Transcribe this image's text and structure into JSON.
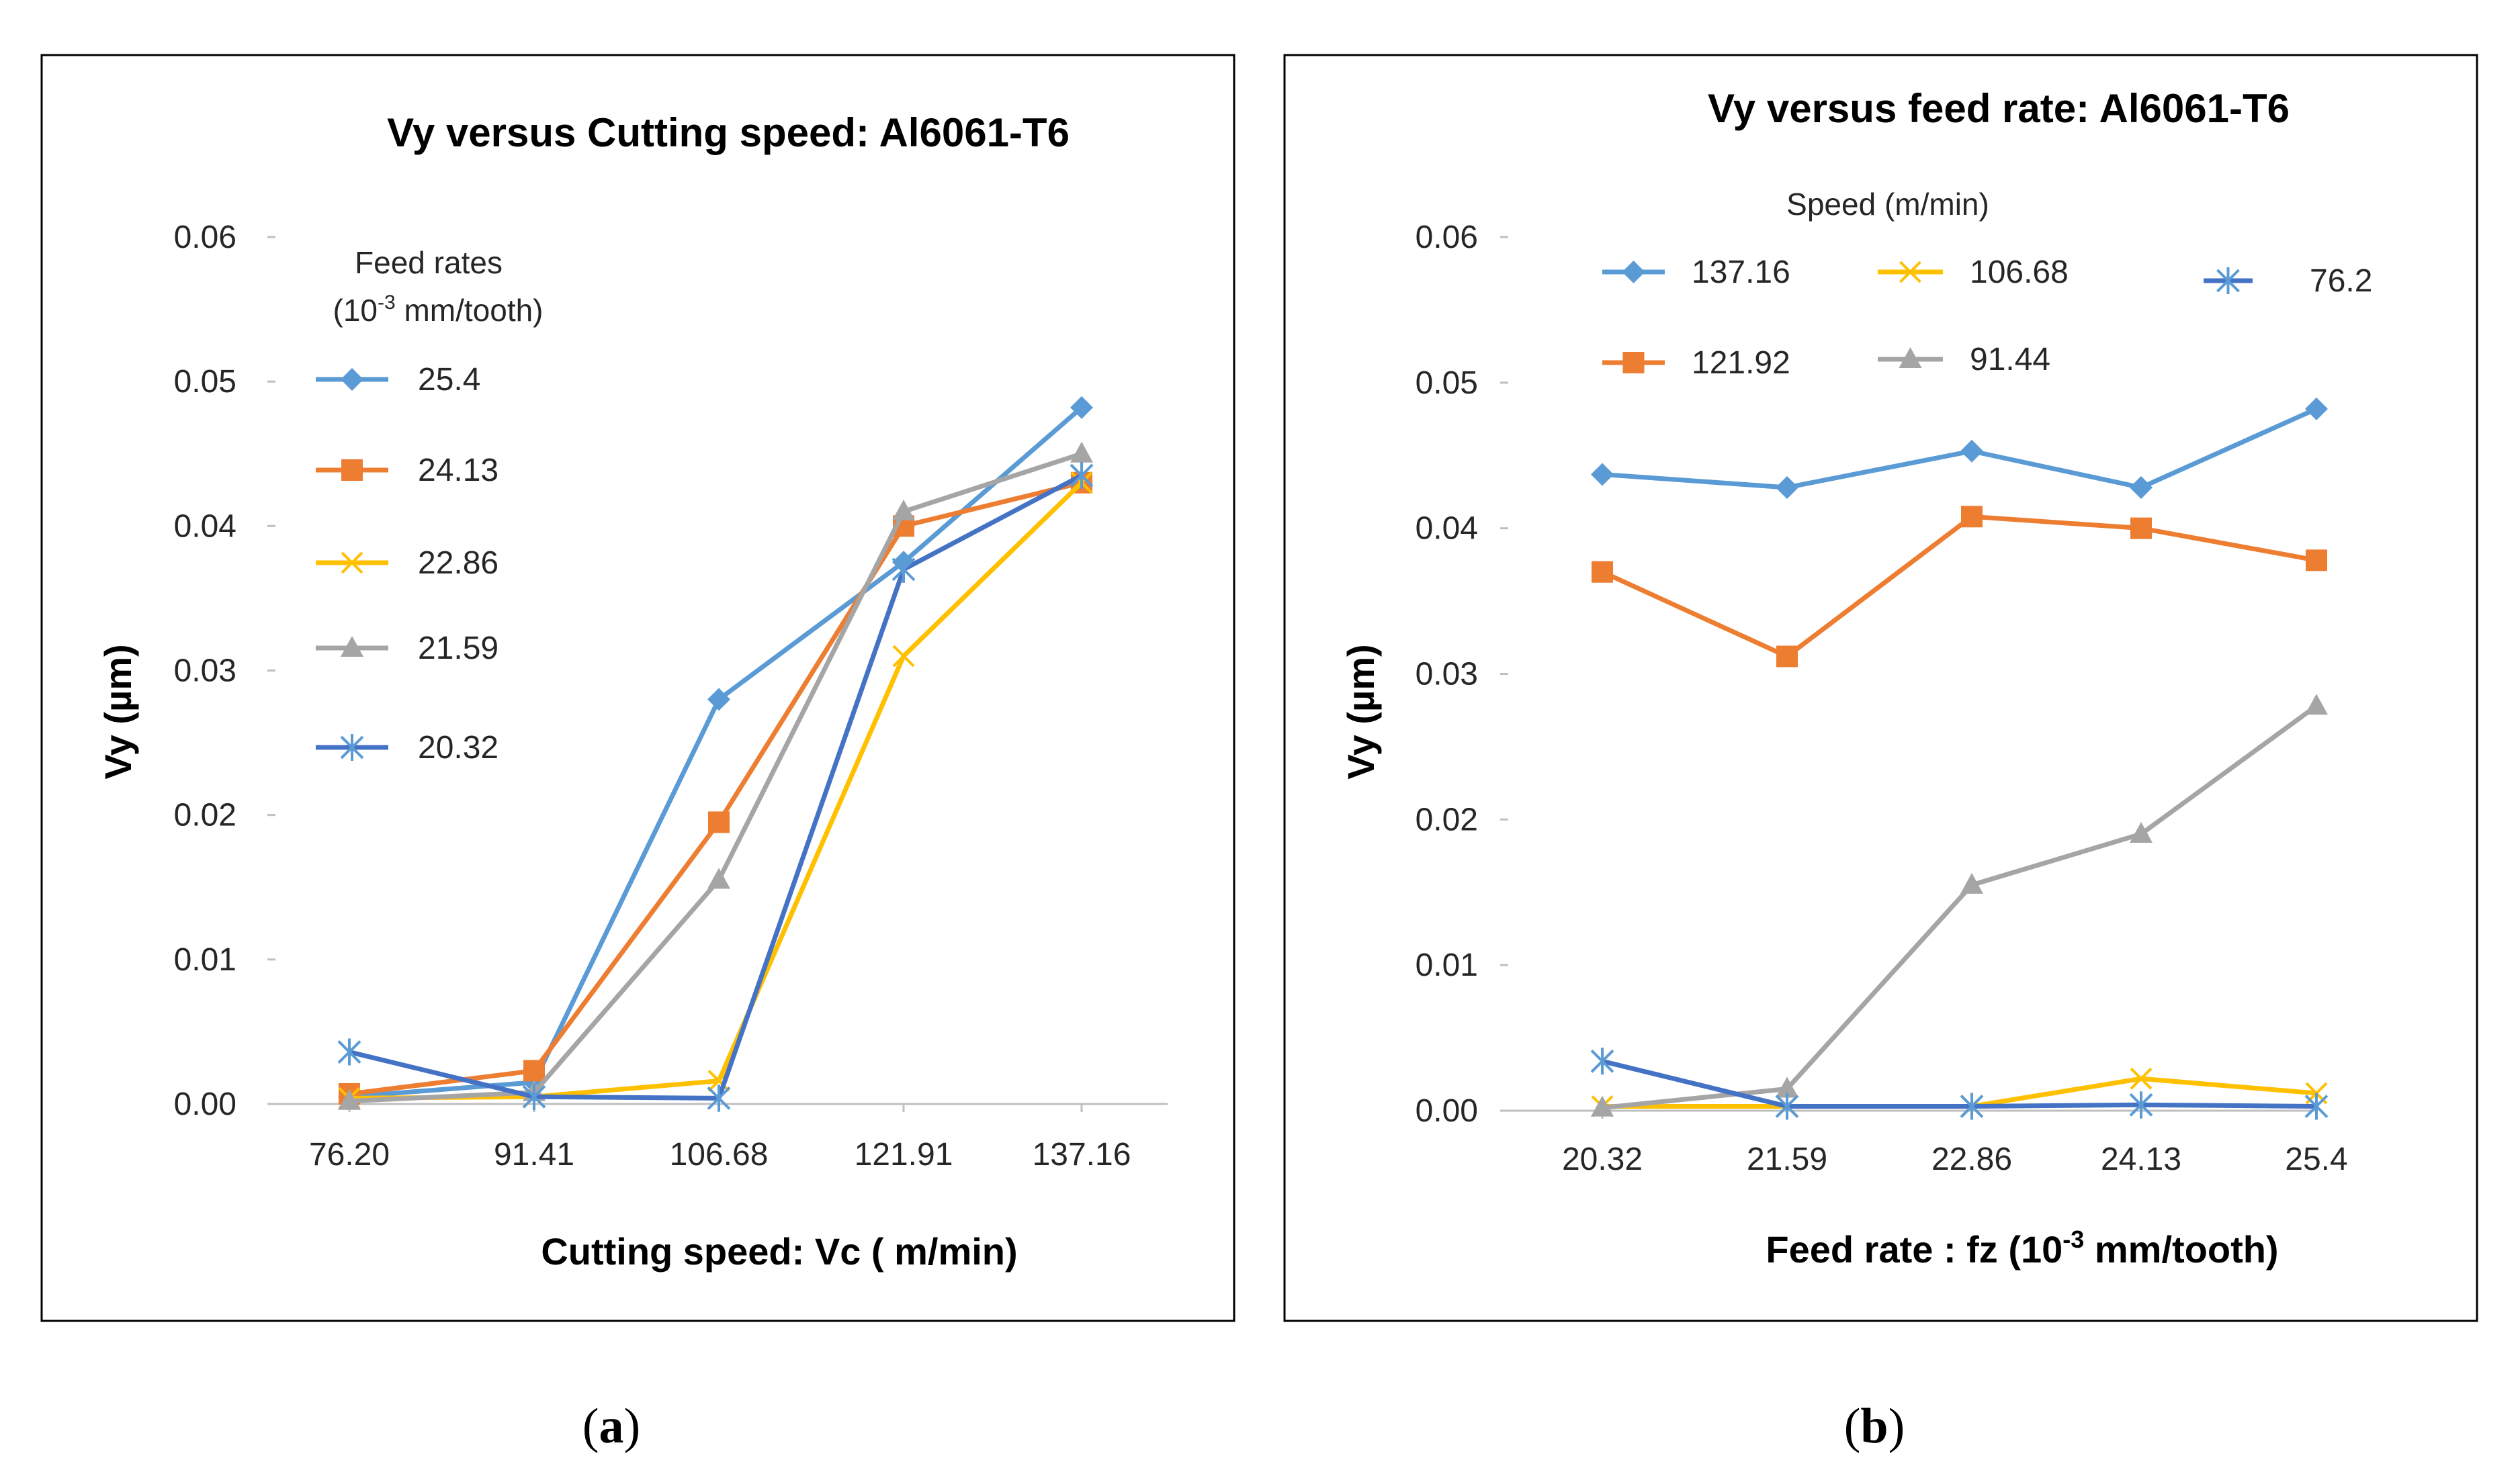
{
  "panels": [
    {
      "caption": "(a)",
      "caption_letter": "a",
      "legend_title_lines": [
        "Feed rates",
        "(10-3 mm/tooth)"
      ]
    },
    {
      "caption": "(b)",
      "caption_letter": "b",
      "legend_title_lines": [
        "Speed (m/min)"
      ]
    }
  ],
  "chart_data": [
    {
      "type": "line",
      "title": "Vy versus Cutting speed: Al6061-T6",
      "xlabel": "Cutting speed: Vc ( m/min)",
      "ylabel": "Vy (µm)",
      "ylim": [
        0,
        0.06
      ],
      "yticks": [
        "0.00",
        "0.01",
        "0.02",
        "0.03",
        "0.04",
        "0.05",
        "0.06"
      ],
      "categories": [
        "76.20",
        "91.41",
        "106.68",
        "121.91",
        "137.16"
      ],
      "legend_title": "Feed rates (10-3 mm/tooth)",
      "series": [
        {
          "name": "25.4",
          "color": "#5B9BD5",
          "marker": "diamond",
          "values": [
            0.0005,
            0.0015,
            0.028,
            0.0375,
            0.0482
          ]
        },
        {
          "name": "24.13",
          "color": "#ED7D31",
          "marker": "square",
          "values": [
            0.0007,
            0.0023,
            0.0195,
            0.04,
            0.043
          ]
        },
        {
          "name": "22.86",
          "color": "#FFC000",
          "marker": "x",
          "values": [
            0.0004,
            0.0005,
            0.0016,
            0.031,
            0.043
          ]
        },
        {
          "name": "21.59",
          "color": "#A5A5A5",
          "marker": "triangle",
          "values": [
            0.0002,
            0.0008,
            0.0155,
            0.041,
            0.045
          ]
        },
        {
          "name": "20.32",
          "color": "#4472C4",
          "marker": "asterisk",
          "values": [
            0.0036,
            0.0005,
            0.0004,
            0.037,
            0.0435
          ]
        }
      ]
    },
    {
      "type": "line",
      "title": "Vy versus feed rate: Al6061-T6",
      "xlabel": "Feed rate : fz (10-3 mm/tooth)",
      "ylabel": "Vy (µm)",
      "ylim": [
        0,
        0.06
      ],
      "yticks": [
        "0.00",
        "0.01",
        "0.02",
        "0.03",
        "0.04",
        "0.05",
        "0.06"
      ],
      "categories": [
        "20.32",
        "21.59",
        "22.86",
        "24.13",
        "25.4"
      ],
      "legend_title": "Speed (m/min)",
      "series": [
        {
          "name": "137.16",
          "color": "#5B9BD5",
          "marker": "diamond",
          "values": [
            0.0437,
            0.0428,
            0.0453,
            0.0428,
            0.0482
          ]
        },
        {
          "name": "121.92",
          "color": "#ED7D31",
          "marker": "square",
          "values": [
            0.037,
            0.0312,
            0.0408,
            0.04,
            0.0378
          ]
        },
        {
          "name": "106.68",
          "color": "#FFC000",
          "marker": "x",
          "values": [
            0.0003,
            0.0003,
            0.0003,
            0.0022,
            0.0012
          ]
        },
        {
          "name": "91.44",
          "color": "#A5A5A5",
          "marker": "triangle",
          "values": [
            0.0002,
            0.0015,
            0.0155,
            0.019,
            0.0278
          ]
        },
        {
          "name": "76.2",
          "color": "#4472C4",
          "marker": "asterisk",
          "values": [
            0.0034,
            0.0003,
            0.0003,
            0.0004,
            0.0003
          ]
        }
      ]
    }
  ]
}
